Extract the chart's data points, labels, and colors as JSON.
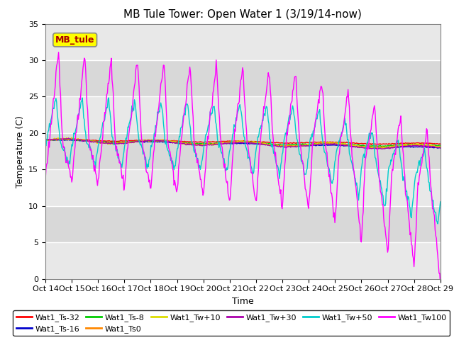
{
  "title": "MB Tule Tower: Open Water 1 (3/19/14-now)",
  "xlabel": "Time",
  "ylabel": "Temperature (C)",
  "ylim": [
    0,
    35
  ],
  "yticks": [
    0,
    5,
    10,
    15,
    20,
    25,
    30,
    35
  ],
  "xtick_labels": [
    "Oct 14",
    "Oct 15",
    "Oct 16",
    "Oct 17",
    "Oct 18",
    "Oct 19",
    "Oct 20",
    "Oct 21",
    "Oct 22",
    "Oct 23",
    "Oct 24",
    "Oct 25",
    "Oct 26",
    "Oct 27",
    "Oct 28",
    "Oct 29"
  ],
  "legend_box_label": "MB_tule",
  "legend_box_facecolor": "#ffff00",
  "legend_box_edgecolor": "#888888",
  "legend_box_text_color": "#aa0000",
  "series": [
    {
      "label": "Wat1_Ts-32",
      "color": "#ff0000"
    },
    {
      "label": "Wat1_Ts-16",
      "color": "#0000cc"
    },
    {
      "label": "Wat1_Ts-8",
      "color": "#00cc00"
    },
    {
      "label": "Wat1_Ts0",
      "color": "#ff8800"
    },
    {
      "label": "Wat1_Tw+10",
      "color": "#dddd00"
    },
    {
      "label": "Wat1_Tw+30",
      "color": "#aa00aa"
    },
    {
      "label": "Wat1_Tw+50",
      "color": "#00cccc"
    },
    {
      "label": "Wat1_Tw100",
      "color": "#ff00ff"
    }
  ],
  "plot_bg_color": "#e8e8e8",
  "fig_bg_color": "#ffffff",
  "stripe_colors": [
    "#e8e8e8",
    "#d8d8d8"
  ]
}
